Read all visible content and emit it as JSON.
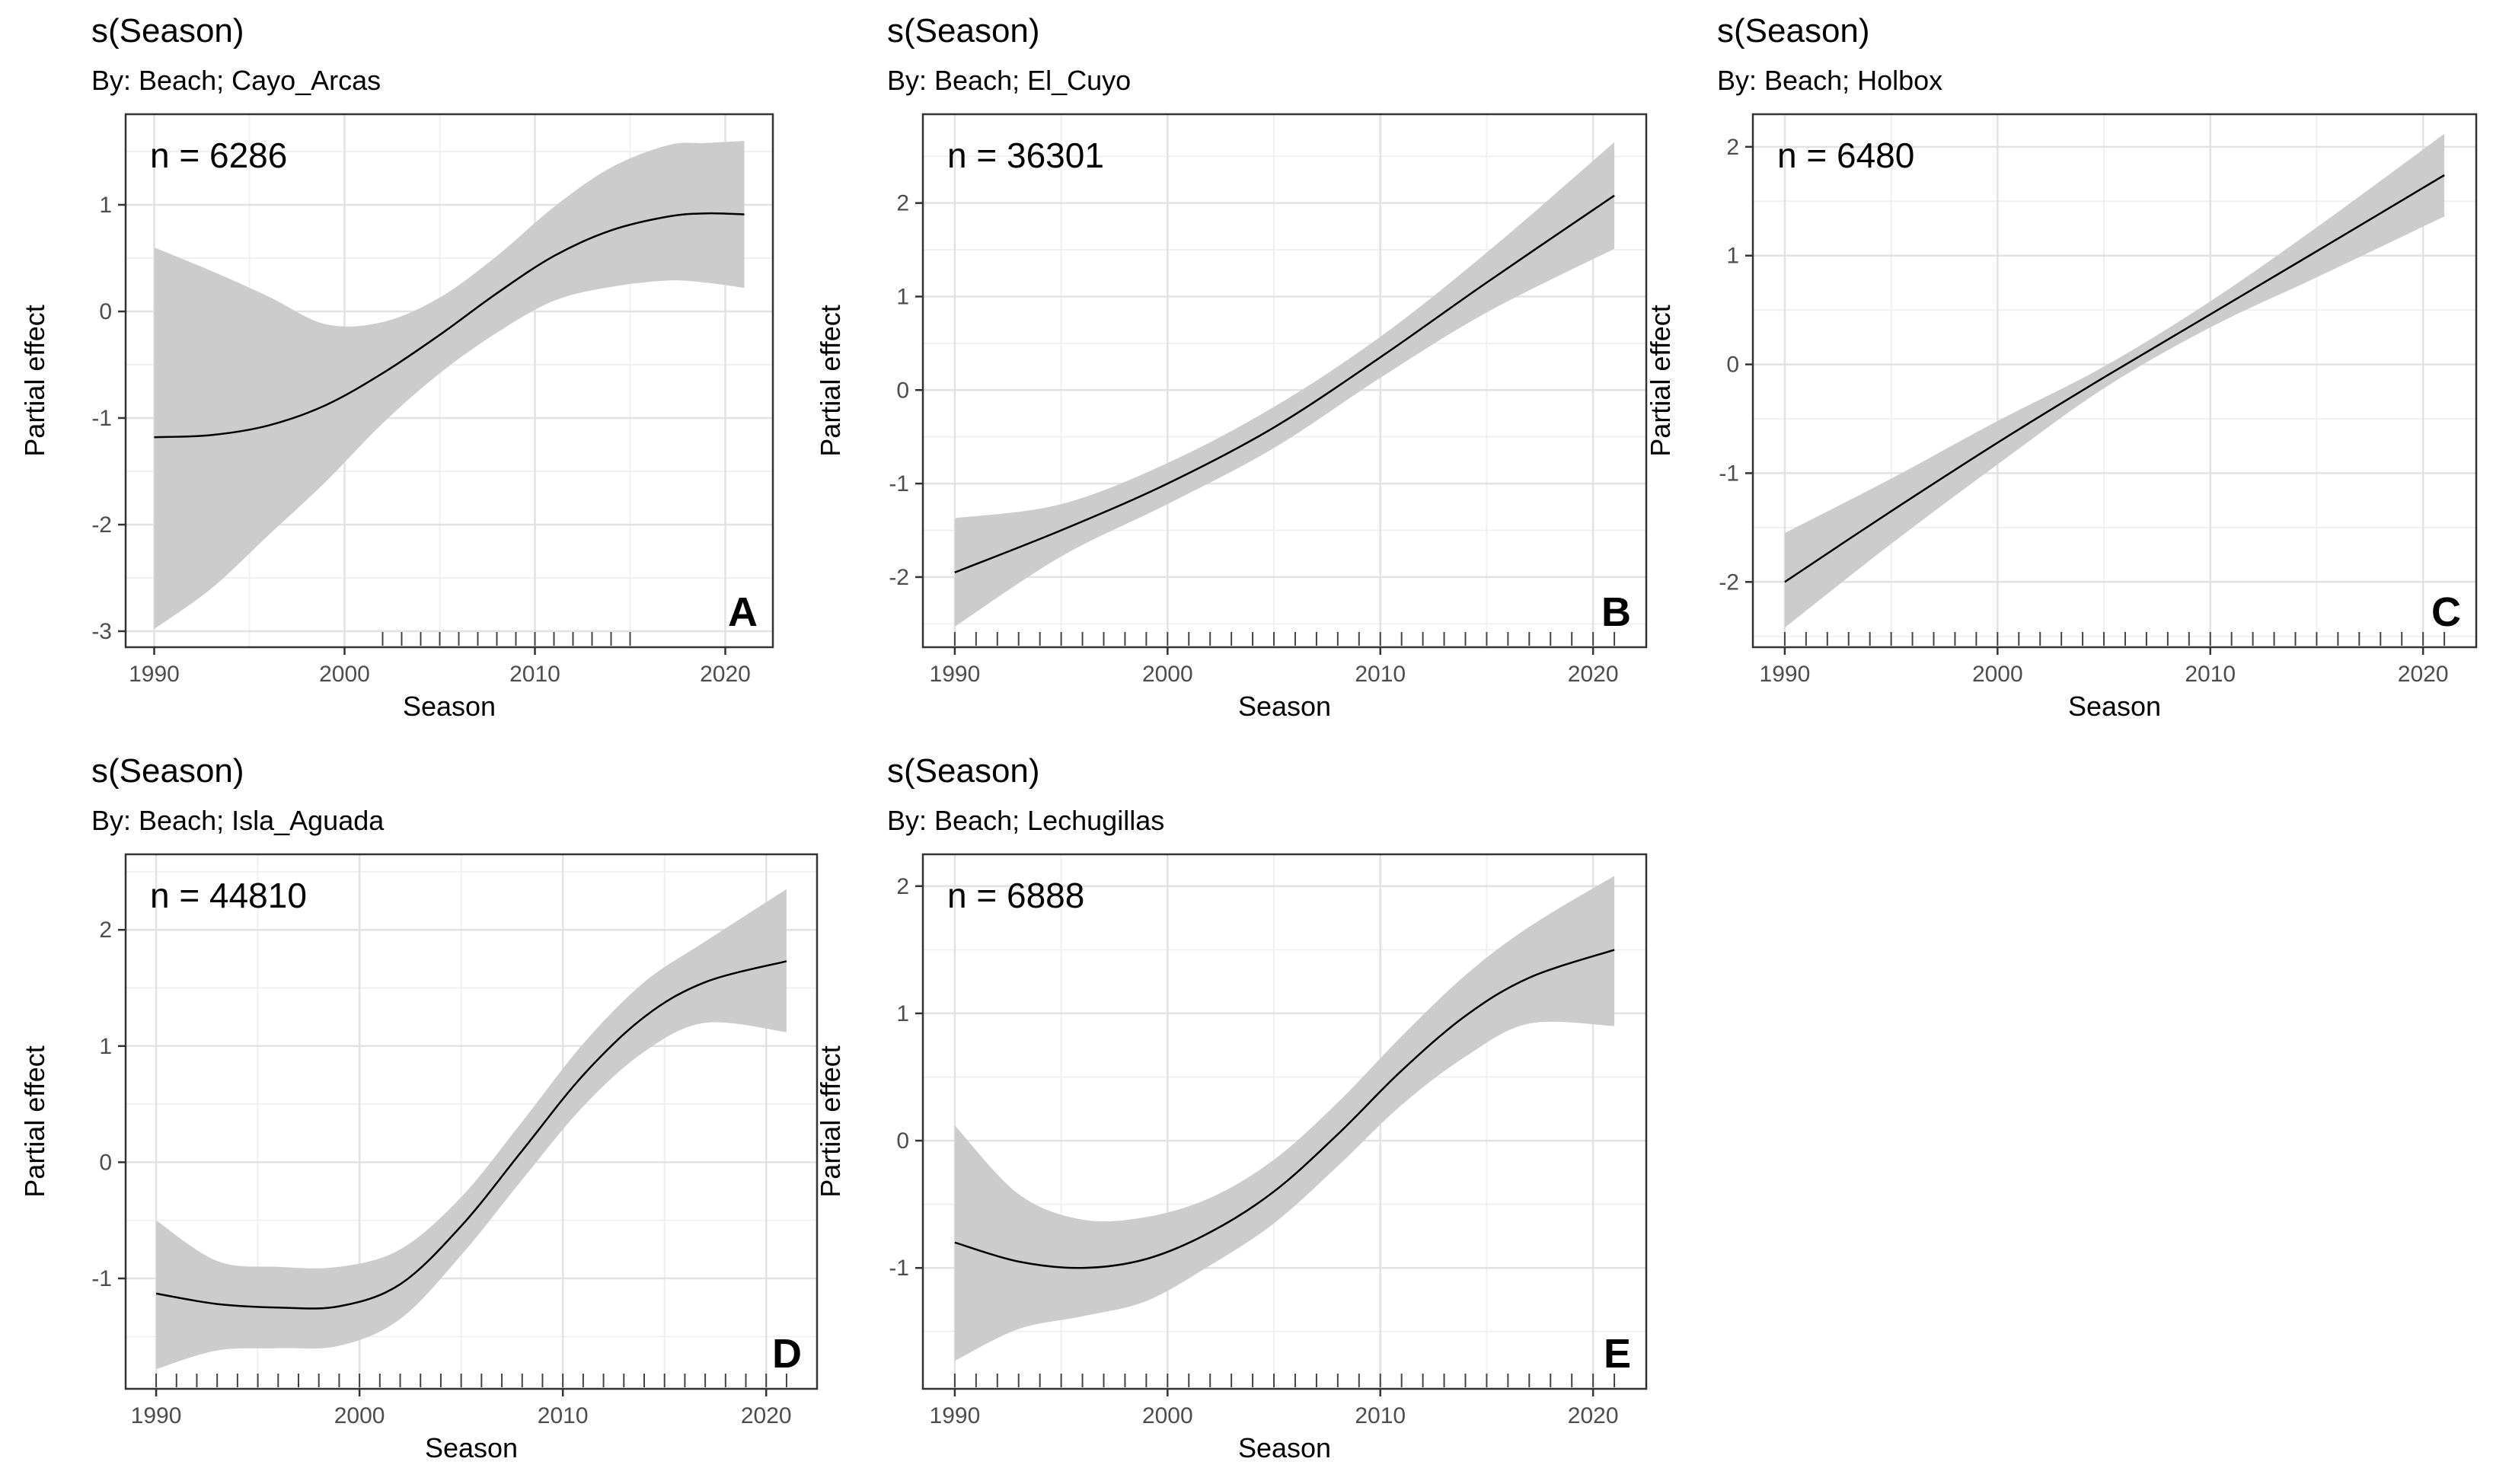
{
  "chart_data": [
    {
      "type": "line",
      "title": "s(Season)",
      "subtitle": "By: Beach; Cayo_Arcas",
      "annotation": "n = 6286",
      "panel_label": "A",
      "xlabel": "Season",
      "ylabel": "Partial effect",
      "xlim": [
        1988.5,
        2022.5
      ],
      "ylim": [
        -3.15,
        1.85
      ],
      "x_ticks": [
        1990,
        2000,
        2010,
        2020
      ],
      "y_ticks": [
        -3,
        -2,
        -1,
        0,
        1
      ],
      "x": [
        1990,
        1993,
        1996,
        1999,
        2002,
        2005,
        2008,
        2011,
        2014,
        2017,
        2019,
        2021
      ],
      "series": [
        {
          "name": "fit",
          "values": [
            -1.18,
            -1.16,
            -1.07,
            -0.88,
            -0.58,
            -0.22,
            0.17,
            0.52,
            0.76,
            0.89,
            0.92,
            0.91
          ]
        },
        {
          "name": "upper",
          "values": [
            0.6,
            0.38,
            0.14,
            -0.12,
            -0.1,
            0.13,
            0.52,
            0.98,
            1.35,
            1.56,
            1.58,
            1.6
          ]
        },
        {
          "name": "lower",
          "values": [
            -2.98,
            -2.6,
            -2.1,
            -1.6,
            -1.05,
            -0.58,
            -0.2,
            0.1,
            0.23,
            0.29,
            0.27,
            0.22
          ]
        }
      ],
      "rug": [
        2002,
        2003,
        2004,
        2005,
        2006,
        2007,
        2008,
        2009,
        2010,
        2011,
        2012,
        2013,
        2014,
        2015
      ]
    },
    {
      "type": "line",
      "title": "s(Season)",
      "subtitle": "By: Beach; El_Cuyo",
      "annotation": "n = 36301",
      "panel_label": "B",
      "xlabel": "Season",
      "ylabel": "Partial effect",
      "xlim": [
        1988.5,
        2022.5
      ],
      "ylim": [
        -2.75,
        2.95
      ],
      "x_ticks": [
        1990,
        2000,
        2010,
        2020
      ],
      "y_ticks": [
        -2,
        -1,
        0,
        1,
        2
      ],
      "x": [
        1990,
        1995,
        2000,
        2005,
        2010,
        2015,
        2021
      ],
      "series": [
        {
          "name": "fit",
          "values": [
            -1.95,
            -1.5,
            -1.0,
            -0.4,
            0.35,
            1.15,
            2.08
          ]
        },
        {
          "name": "upper",
          "values": [
            -1.37,
            -1.22,
            -0.78,
            -0.18,
            0.57,
            1.47,
            2.65
          ]
        },
        {
          "name": "lower",
          "values": [
            -2.53,
            -1.78,
            -1.22,
            -0.62,
            0.13,
            0.83,
            1.51
          ]
        }
      ],
      "rug": [
        1990,
        1991,
        1992,
        1993,
        1994,
        1995,
        1996,
        1997,
        1998,
        1999,
        2000,
        2001,
        2002,
        2003,
        2004,
        2005,
        2006,
        2007,
        2008,
        2009,
        2010,
        2011,
        2012,
        2013,
        2014,
        2015,
        2016,
        2017,
        2018,
        2019,
        2020,
        2021
      ]
    },
    {
      "type": "line",
      "title": "s(Season)",
      "subtitle": "By: Beach; Holbox",
      "annotation": "n = 6480",
      "panel_label": "C",
      "xlabel": "Season",
      "ylabel": "Partial effect",
      "xlim": [
        1988.5,
        2022.5
      ],
      "ylim": [
        -2.6,
        2.3
      ],
      "x_ticks": [
        1990,
        2000,
        2010,
        2020
      ],
      "y_ticks": [
        -2,
        -1,
        0,
        1,
        2
      ],
      "x": [
        1990,
        1995,
        2000,
        2005,
        2010,
        2015,
        2021
      ],
      "series": [
        {
          "name": "fit",
          "values": [
            -2.0,
            -1.35,
            -0.72,
            -0.12,
            0.46,
            1.04,
            1.74
          ]
        },
        {
          "name": "upper",
          "values": [
            -1.55,
            -1.05,
            -0.52,
            -0.02,
            0.58,
            1.26,
            2.12
          ]
        },
        {
          "name": "lower",
          "values": [
            -2.42,
            -1.65,
            -0.92,
            -0.22,
            0.34,
            0.8,
            1.36
          ]
        }
      ],
      "rug": [
        1990,
        1991,
        1992,
        1993,
        1994,
        1995,
        1996,
        1997,
        1998,
        1999,
        2000,
        2001,
        2002,
        2003,
        2004,
        2005,
        2006,
        2007,
        2008,
        2009,
        2010,
        2011,
        2012,
        2013,
        2014,
        2015,
        2016,
        2017,
        2018,
        2019,
        2020,
        2021
      ]
    },
    {
      "type": "line",
      "title": "s(Season)",
      "subtitle": "By: Beach; Isla_Aguada",
      "annotation": "n = 44810",
      "panel_label": "D",
      "xlabel": "Season",
      "ylabel": "Partial effect",
      "xlim": [
        1988.5,
        2022.5
      ],
      "ylim": [
        -1.95,
        2.65
      ],
      "x_ticks": [
        1990,
        2000,
        2010,
        2020
      ],
      "y_ticks": [
        -1,
        0,
        1,
        2
      ],
      "x": [
        1990,
        1993,
        1996,
        1999,
        2002,
        2005,
        2008,
        2011,
        2014,
        2017,
        2021
      ],
      "series": [
        {
          "name": "fit",
          "values": [
            -1.13,
            -1.22,
            -1.25,
            -1.24,
            -1.05,
            -0.55,
            0.1,
            0.75,
            1.25,
            1.55,
            1.73
          ]
        },
        {
          "name": "upper",
          "values": [
            -0.5,
            -0.85,
            -0.9,
            -0.9,
            -0.75,
            -0.3,
            0.35,
            1.02,
            1.55,
            1.9,
            2.35
          ]
        },
        {
          "name": "lower",
          "values": [
            -1.78,
            -1.62,
            -1.6,
            -1.58,
            -1.35,
            -0.8,
            -0.15,
            0.48,
            0.95,
            1.2,
            1.12
          ]
        }
      ],
      "rug": [
        1990,
        1991,
        1992,
        1993,
        1994,
        1995,
        1996,
        1997,
        1998,
        1999,
        2000,
        2001,
        2002,
        2003,
        2004,
        2005,
        2006,
        2007,
        2008,
        2009,
        2010,
        2011,
        2012,
        2013,
        2014,
        2015,
        2016,
        2017,
        2018,
        2019,
        2020,
        2021
      ]
    },
    {
      "type": "line",
      "title": "s(Season)",
      "subtitle": "By: Beach; Lechugillas",
      "annotation": "n = 6888",
      "panel_label": "E",
      "xlabel": "Season",
      "ylabel": "Partial effect",
      "xlim": [
        1988.5,
        2022.5
      ],
      "ylim": [
        -1.95,
        2.25
      ],
      "x_ticks": [
        1990,
        2000,
        2010,
        2020
      ],
      "y_ticks": [
        -1,
        0,
        1,
        2
      ],
      "x": [
        1990,
        1993,
        1996,
        1999,
        2002,
        2005,
        2008,
        2011,
        2014,
        2017,
        2021
      ],
      "series": [
        {
          "name": "fit",
          "values": [
            -0.8,
            -0.95,
            -1.0,
            -0.93,
            -0.72,
            -0.4,
            0.05,
            0.55,
            0.98,
            1.28,
            1.5
          ]
        },
        {
          "name": "upper",
          "values": [
            0.12,
            -0.42,
            -0.62,
            -0.6,
            -0.45,
            -0.15,
            0.3,
            0.82,
            1.3,
            1.68,
            2.08
          ]
        },
        {
          "name": "lower",
          "values": [
            -1.73,
            -1.48,
            -1.38,
            -1.26,
            -0.98,
            -0.65,
            -0.2,
            0.28,
            0.66,
            0.92,
            0.9
          ]
        }
      ],
      "rug": [
        1990,
        1991,
        1992,
        1993,
        1994,
        1995,
        1996,
        1997,
        1998,
        1999,
        2000,
        2001,
        2002,
        2003,
        2004,
        2005,
        2006,
        2007,
        2008,
        2009,
        2010,
        2011,
        2012,
        2013,
        2014,
        2015,
        2016,
        2017,
        2018,
        2019,
        2020,
        2021
      ]
    }
  ]
}
